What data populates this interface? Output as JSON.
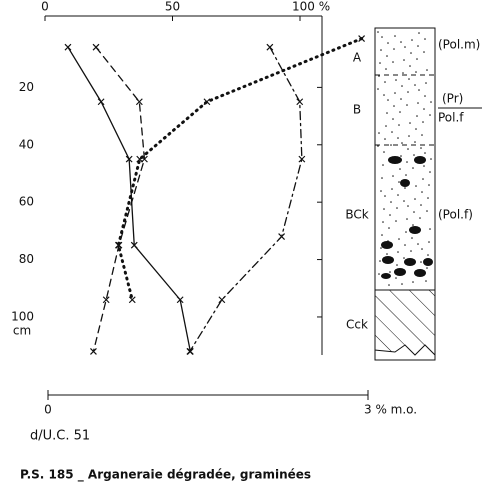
{
  "chart_data": {
    "type": "profile",
    "caption": "P.S. 185 _ Arganeraie dégradée, graminées",
    "bottom_axis_label": "d/U.C. 51",
    "xlim": [
      0,
      100
    ],
    "xticks": [
      0,
      50,
      {
        "value": 100,
        "label": "100 %"
      }
    ],
    "x2lim": [
      0,
      3
    ],
    "x2ticks": [
      0,
      {
        "value": 3,
        "label": "3 % m.o."
      }
    ],
    "ylim": [
      0,
      115
    ],
    "yticks": [
      20,
      40,
      60,
      80,
      100
    ],
    "depth_unit": "cm",
    "series": [
      {
        "style": "solid",
        "axis": "x",
        "depths": [
          6,
          25,
          45,
          75,
          94,
          112
        ],
        "values": [
          9,
          22,
          33,
          35,
          53,
          57
        ]
      },
      {
        "style": "dashed",
        "axis": "x",
        "depths": [
          6,
          25,
          45,
          75,
          94,
          112
        ],
        "values": [
          20,
          37,
          39,
          29,
          24,
          19
        ]
      },
      {
        "style": "dotted",
        "axis": "x2",
        "depths": [
          3,
          25,
          45,
          75,
          94
        ],
        "values": [
          2.94,
          1.49,
          0.86,
          0.66,
          0.79
        ]
      },
      {
        "style": "dashdot",
        "axis": "x2",
        "depths": [
          6,
          25,
          45,
          72,
          94,
          112
        ],
        "values": [
          2.08,
          2.36,
          2.38,
          2.19,
          1.63,
          1.33
        ]
      }
    ],
    "horizons": [
      {
        "name": "A",
        "note": "(Pol.m)"
      },
      {
        "name": "B",
        "note_top": "(Pr)",
        "note": "Pol.f"
      },
      {
        "name": "BCk",
        "note": "(Pol.f)"
      },
      {
        "name": "Cck"
      }
    ]
  }
}
